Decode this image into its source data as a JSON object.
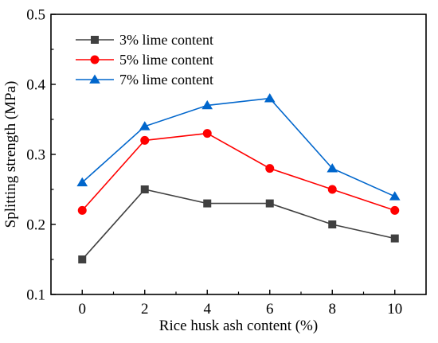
{
  "chart_data": {
    "type": "line",
    "xlabel": "Rice husk ash content (%)",
    "ylabel": "Splitting strength (MPa)",
    "x": [
      0,
      2,
      4,
      6,
      8,
      10
    ],
    "xlim": [
      -1,
      11
    ],
    "ylim": [
      0.1,
      0.5
    ],
    "xticks": [
      "0",
      "2",
      "4",
      "6",
      "8",
      "10"
    ],
    "yticks": [
      "0.1",
      "0.2",
      "0.3",
      "0.4",
      "0.5"
    ],
    "grid": false,
    "legend_position": "top-left",
    "series": [
      {
        "name": "3% lime content",
        "values": [
          0.15,
          0.25,
          0.23,
          0.23,
          0.2,
          0.18
        ],
        "color": "#404040",
        "marker": "square"
      },
      {
        "name": "5% lime content",
        "values": [
          0.22,
          0.32,
          0.33,
          0.28,
          0.25,
          0.22
        ],
        "color": "#ff0000",
        "marker": "circle"
      },
      {
        "name": "7% lime content",
        "values": [
          0.26,
          0.34,
          0.37,
          0.38,
          0.28,
          0.24
        ],
        "color": "#0066cc",
        "marker": "triangle"
      }
    ]
  }
}
